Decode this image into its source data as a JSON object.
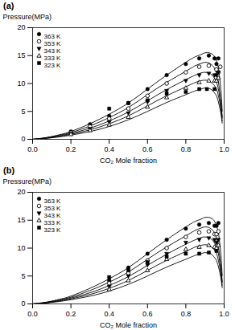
{
  "chart_data": [
    {
      "type": "line",
      "title": "(a)",
      "xlabel": "CO₂ Mole fraction",
      "ylabel": "Pressure(MPa)",
      "xlim": [
        0.0,
        1.0
      ],
      "ylim": [
        0,
        20
      ],
      "xticks": [
        {
          "value": 0.0,
          "label": "0.0"
        },
        0.2,
        0.4,
        0.6,
        0.8,
        {
          "value": 1.0,
          "label": "1.0"
        }
      ],
      "yticks": [
        0,
        5,
        10,
        15,
        20
      ],
      "grid": false,
      "legend": "upper left",
      "series": [
        {
          "name": "363 K",
          "type": "line",
          "color": "black",
          "line_style": "solid",
          "x": [
            0.0,
            0.05,
            0.1,
            0.15,
            0.2,
            0.3,
            0.4,
            0.5,
            0.6,
            0.7,
            0.8,
            0.85,
            0.88,
            0.9,
            0.92,
            0.93,
            0.94,
            0.95,
            0.96,
            0.965,
            0.97,
            0.975,
            0.98,
            0.985,
            0.99
          ],
          "values": [
            0,
            0.2,
            0.5,
            0.9,
            1.4,
            2.8,
            4.5,
            6.5,
            9.0,
            11.5,
            13.8,
            14.8,
            15.2,
            15.5,
            15.5,
            15.4,
            15.2,
            14.8,
            14.0,
            13.5,
            12.8,
            11.5,
            10.0,
            8.0,
            5.0
          ]
        },
        {
          "name": "353 K",
          "type": "line",
          "color": "black",
          "line_style": "solid",
          "x": [
            0.0,
            0.05,
            0.1,
            0.15,
            0.2,
            0.3,
            0.4,
            0.5,
            0.6,
            0.7,
            0.8,
            0.85,
            0.88,
            0.9,
            0.92,
            0.93,
            0.94,
            0.95,
            0.96,
            0.965,
            0.97,
            0.975,
            0.98,
            0.985,
            0.99
          ],
          "values": [
            0,
            0.18,
            0.45,
            0.8,
            1.2,
            2.4,
            3.9,
            5.7,
            8.0,
            10.2,
            12.2,
            13.2,
            13.6,
            13.8,
            13.7,
            13.5,
            13.2,
            12.7,
            11.8,
            11.2,
            10.3,
            9.0,
            7.5,
            6.0,
            4.0
          ]
        },
        {
          "name": "343 K",
          "type": "line",
          "color": "black",
          "line_style": "solid",
          "x": [
            0.0,
            0.05,
            0.1,
            0.15,
            0.2,
            0.3,
            0.4,
            0.5,
            0.6,
            0.7,
            0.8,
            0.85,
            0.88,
            0.9,
            0.92,
            0.93,
            0.94,
            0.95,
            0.96,
            0.965,
            0.97,
            0.975,
            0.98,
            0.985,
            0.99
          ],
          "values": [
            0,
            0.15,
            0.38,
            0.68,
            1.05,
            2.0,
            3.3,
            4.9,
            6.9,
            8.9,
            10.7,
            11.5,
            11.9,
            12.0,
            11.9,
            11.7,
            11.4,
            10.9,
            10.2,
            9.7,
            9.0,
            8.0,
            6.8,
            5.5,
            3.8
          ]
        },
        {
          "name": "333 K",
          "type": "line",
          "color": "black",
          "line_style": "solid",
          "x": [
            0.0,
            0.05,
            0.1,
            0.15,
            0.2,
            0.3,
            0.4,
            0.5,
            0.6,
            0.7,
            0.8,
            0.85,
            0.88,
            0.9,
            0.92,
            0.93,
            0.94,
            0.95,
            0.96,
            0.965,
            0.97,
            0.975,
            0.98,
            0.985,
            0.99
          ],
          "values": [
            0,
            0.12,
            0.32,
            0.58,
            0.9,
            1.7,
            2.8,
            4.2,
            6.0,
            7.8,
            9.4,
            10.2,
            10.5,
            10.6,
            10.5,
            10.3,
            10.0,
            9.6,
            9.0,
            8.5,
            7.8,
            7.0,
            6.0,
            4.8,
            3.3
          ]
        },
        {
          "name": "323 K",
          "type": "line",
          "color": "black",
          "line_style": "solid",
          "x": [
            0.0,
            0.05,
            0.1,
            0.15,
            0.2,
            0.3,
            0.4,
            0.5,
            0.6,
            0.7,
            0.8,
            0.85,
            0.88,
            0.9,
            0.92,
            0.93,
            0.94,
            0.95,
            0.96,
            0.965,
            0.97,
            0.975,
            0.98,
            0.985,
            0.99
          ],
          "values": [
            0,
            0.1,
            0.27,
            0.48,
            0.75,
            1.4,
            2.3,
            3.5,
            5.0,
            6.6,
            8.0,
            8.7,
            9.0,
            9.2,
            9.1,
            9.0,
            8.7,
            8.3,
            7.8,
            7.3,
            6.7,
            6.0,
            5.2,
            4.2,
            2.9
          ]
        },
        {
          "name": "363 K",
          "type": "scatter",
          "color": "black",
          "marker": "circle",
          "x": [
            0.2,
            0.3,
            0.4,
            0.5,
            0.6,
            0.7,
            0.8,
            0.87,
            0.92,
            0.95,
            0.96,
            0.97
          ],
          "values": [
            1.4,
            2.7,
            4.2,
            6.5,
            9.0,
            11.5,
            13.5,
            14.5,
            15.0,
            14.5,
            13.5,
            14.5
          ]
        },
        {
          "name": "353 K",
          "type": "scatter",
          "color": "black",
          "marker": "open_circle",
          "x": [
            0.2,
            0.3,
            0.4,
            0.5,
            0.6,
            0.7,
            0.8,
            0.87,
            0.92,
            0.96,
            0.97,
            0.98
          ],
          "values": [
            1.2,
            2.3,
            3.7,
            5.5,
            7.8,
            10.0,
            12.0,
            13.0,
            13.2,
            12.5,
            12.0,
            13.0
          ]
        },
        {
          "name": "343 K",
          "type": "scatter",
          "color": "black",
          "marker": "triangle_down",
          "x": [
            0.2,
            0.3,
            0.4,
            0.5,
            0.6,
            0.7,
            0.8,
            0.87,
            0.92,
            0.95,
            0.96,
            0.97
          ],
          "values": [
            1.0,
            1.9,
            3.1,
            4.7,
            6.7,
            8.7,
            10.5,
            11.5,
            11.8,
            11.5,
            11.5,
            12.0
          ]
        },
        {
          "name": "333 K",
          "type": "scatter",
          "color": "black",
          "marker": "open_triangle_up",
          "x": [
            0.2,
            0.3,
            0.4,
            0.5,
            0.6,
            0.7,
            0.8,
            0.87,
            0.92,
            0.95,
            0.96,
            0.97
          ],
          "values": [
            0.9,
            1.6,
            2.6,
            4.0,
            5.8,
            7.5,
            9.2,
            10.2,
            10.5,
            10.5,
            10.5,
            11.0
          ]
        },
        {
          "name": "323 K",
          "type": "scatter",
          "color": "black",
          "marker": "square",
          "x": [
            0.4,
            0.5,
            0.6,
            0.7,
            0.8,
            0.87,
            0.91,
            0.95
          ],
          "values": [
            5.5,
            6.5,
            7.0,
            8.2,
            8.5,
            9.0,
            9.0,
            9.0
          ]
        }
      ]
    },
    {
      "type": "line",
      "title": "(b)",
      "xlabel": "CO₂ Mole fraction",
      "ylabel": "Pressure(MPa)",
      "xlim": [
        0.0,
        1.0
      ],
      "ylim": [
        0,
        20
      ],
      "xticks": [
        {
          "value": 0.0,
          "label": "0.0"
        },
        0.2,
        0.4,
        0.6,
        0.8,
        {
          "value": 1.0,
          "label": "1.0"
        }
      ],
      "yticks": [
        0,
        5,
        10,
        15,
        20
      ],
      "grid": false,
      "legend": "upper left",
      "series": [
        {
          "name": "363 K",
          "type": "line",
          "color": "black",
          "line_style": "solid",
          "x": [
            0.0,
            0.05,
            0.1,
            0.15,
            0.2,
            0.3,
            0.4,
            0.5,
            0.6,
            0.7,
            0.8,
            0.85,
            0.88,
            0.9,
            0.92,
            0.93,
            0.94,
            0.95,
            0.96,
            0.965,
            0.97,
            0.975,
            0.98,
            0.985,
            0.99
          ],
          "values": [
            0,
            0.2,
            0.5,
            0.9,
            1.4,
            2.8,
            4.5,
            6.5,
            9.0,
            11.5,
            13.8,
            14.8,
            15.2,
            15.5,
            15.5,
            15.4,
            15.2,
            14.8,
            14.0,
            13.5,
            12.8,
            11.5,
            10.0,
            8.0,
            5.0
          ]
        },
        {
          "name": "353 K",
          "type": "line",
          "color": "black",
          "line_style": "solid",
          "x": [
            0.0,
            0.05,
            0.1,
            0.15,
            0.2,
            0.3,
            0.4,
            0.5,
            0.6,
            0.7,
            0.8,
            0.85,
            0.88,
            0.9,
            0.92,
            0.93,
            0.94,
            0.95,
            0.96,
            0.965,
            0.97,
            0.975,
            0.98,
            0.985,
            0.99
          ],
          "values": [
            0,
            0.18,
            0.45,
            0.8,
            1.2,
            2.4,
            3.9,
            5.7,
            8.0,
            10.2,
            12.2,
            13.2,
            13.6,
            13.8,
            13.7,
            13.5,
            13.2,
            12.7,
            11.8,
            11.2,
            10.3,
            9.0,
            7.5,
            6.0,
            4.0
          ]
        },
        {
          "name": "343 K",
          "type": "line",
          "color": "black",
          "line_style": "solid",
          "x": [
            0.0,
            0.05,
            0.1,
            0.15,
            0.2,
            0.3,
            0.4,
            0.5,
            0.6,
            0.7,
            0.8,
            0.85,
            0.88,
            0.9,
            0.92,
            0.93,
            0.94,
            0.95,
            0.96,
            0.965,
            0.97,
            0.975,
            0.98,
            0.985,
            0.99
          ],
          "values": [
            0,
            0.15,
            0.38,
            0.68,
            1.05,
            2.0,
            3.3,
            4.9,
            6.9,
            8.9,
            10.7,
            11.5,
            11.9,
            12.0,
            11.9,
            11.7,
            11.4,
            10.9,
            10.2,
            9.7,
            9.0,
            8.0,
            6.8,
            5.5,
            3.8
          ]
        },
        {
          "name": "333 K",
          "type": "line",
          "color": "black",
          "line_style": "solid",
          "x": [
            0.0,
            0.05,
            0.1,
            0.15,
            0.2,
            0.3,
            0.4,
            0.5,
            0.6,
            0.7,
            0.8,
            0.85,
            0.88,
            0.9,
            0.92,
            0.93,
            0.94,
            0.95,
            0.96,
            0.965,
            0.97,
            0.975,
            0.98,
            0.985,
            0.99
          ],
          "values": [
            0,
            0.12,
            0.32,
            0.58,
            0.9,
            1.7,
            2.8,
            4.2,
            6.0,
            7.8,
            9.4,
            10.2,
            10.5,
            10.6,
            10.5,
            10.3,
            10.0,
            9.6,
            9.0,
            8.5,
            7.8,
            7.0,
            6.0,
            4.8,
            3.3
          ]
        },
        {
          "name": "323 K",
          "type": "line",
          "color": "black",
          "line_style": "solid",
          "x": [
            0.0,
            0.05,
            0.1,
            0.15,
            0.2,
            0.3,
            0.4,
            0.5,
            0.6,
            0.7,
            0.8,
            0.85,
            0.88,
            0.9,
            0.92,
            0.93,
            0.94,
            0.95,
            0.96,
            0.965,
            0.97,
            0.975,
            0.98,
            0.985,
            0.99
          ],
          "values": [
            0,
            0.1,
            0.27,
            0.48,
            0.75,
            1.4,
            2.3,
            3.5,
            5.0,
            6.6,
            8.0,
            8.7,
            9.0,
            9.2,
            9.1,
            9.0,
            8.7,
            8.3,
            7.8,
            7.3,
            6.7,
            6.0,
            5.2,
            4.2,
            2.9
          ]
        },
        {
          "name": "363 K",
          "type": "scatter",
          "color": "black",
          "marker": "circle",
          "x": [
            0.4,
            0.5,
            0.6,
            0.7,
            0.8,
            0.87,
            0.92,
            0.95,
            0.96,
            0.97
          ],
          "values": [
            4.2,
            6.5,
            9.0,
            11.5,
            13.5,
            14.2,
            14.5,
            14.0,
            14.0,
            14.5
          ]
        },
        {
          "name": "353 K",
          "type": "scatter",
          "color": "black",
          "marker": "open_circle",
          "x": [
            0.4,
            0.5,
            0.6,
            0.7,
            0.8,
            0.87,
            0.92,
            0.95,
            0.96,
            0.97
          ],
          "values": [
            3.7,
            5.5,
            7.8,
            10.0,
            12.0,
            12.8,
            13.0,
            12.5,
            12.5,
            13.0
          ]
        },
        {
          "name": "343 K",
          "type": "scatter",
          "color": "black",
          "marker": "triangle_down",
          "x": [
            0.4,
            0.5,
            0.6,
            0.7,
            0.8,
            0.87,
            0.92,
            0.95,
            0.96,
            0.97
          ],
          "values": [
            3.1,
            5.0,
            7.0,
            9.0,
            11.0,
            11.5,
            11.8,
            11.5,
            11.0,
            11.5
          ]
        },
        {
          "name": "333 K",
          "type": "scatter",
          "color": "black",
          "marker": "open_triangle_up",
          "x": [
            0.4,
            0.5,
            0.6,
            0.7,
            0.8,
            0.87,
            0.92,
            0.95,
            0.96,
            0.97
          ],
          "values": [
            2.6,
            4.2,
            6.0,
            8.0,
            9.8,
            10.2,
            10.5,
            10.2,
            10.0,
            10.5
          ]
        },
        {
          "name": "323 K",
          "type": "scatter",
          "color": "black",
          "marker": "square",
          "x": [
            0.4,
            0.5,
            0.6,
            0.7,
            0.8,
            0.87,
            0.92,
            0.96
          ],
          "values": [
            4.8,
            6.0,
            7.5,
            8.5,
            9.0,
            9.0,
            9.2,
            9.5
          ]
        }
      ]
    }
  ]
}
